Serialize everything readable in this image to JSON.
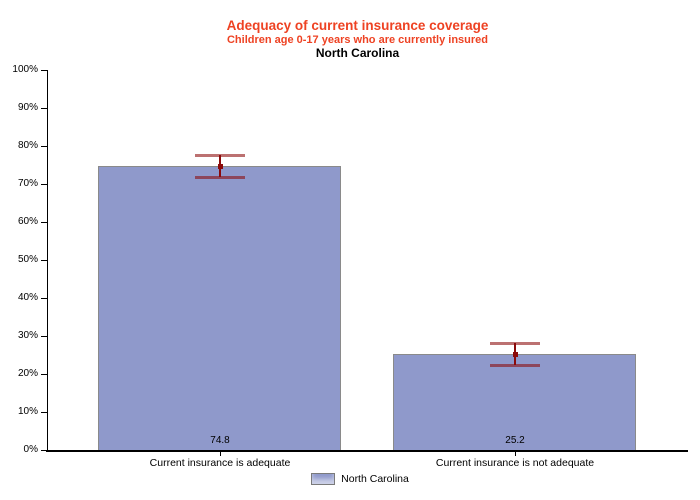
{
  "chart_data": {
    "type": "bar",
    "title": "Adequacy of current insurance coverage",
    "subtitle": "Children age 0-17 years who are currently insured",
    "region": "North Carolina",
    "categories": [
      "Current insurance is adequate",
      "Current insurance is not adequate"
    ],
    "values": [
      74.8,
      25.2
    ],
    "value_labels": [
      "74.8",
      "25.2"
    ],
    "error_bars": [
      {
        "low": 71.8,
        "high": 77.7
      },
      {
        "low": 22.4,
        "high": 28.2
      }
    ],
    "ylim": [
      0,
      100
    ],
    "ytick_step": 10,
    "ytick_suffix": "%",
    "xlabel": "",
    "ylabel": "",
    "grid": false,
    "legend_position": "bottom",
    "legend": [
      {
        "label": "North Carolina",
        "color": "#8f99cb"
      }
    ],
    "colors": {
      "title": "#ee4223",
      "subtitle": "#ee4223",
      "region_label": "#000000",
      "bar_fill": "#8f99cb",
      "bar_border": "#8a8a8a",
      "error_bar": "#8b0a0a",
      "axis": "#000000"
    }
  }
}
